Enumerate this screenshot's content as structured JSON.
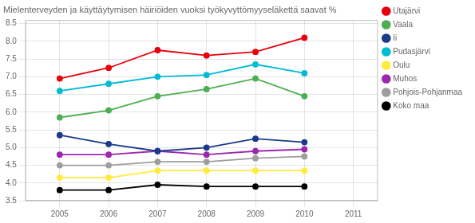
{
  "chart_data": {
    "type": "line",
    "title": "Mielenterveyden ja käyttäytymisen häiriöiden vuoksi työkyvyttömyyseläkettä saavat %",
    "x": [
      2005,
      2006,
      2007,
      2008,
      2009,
      2010
    ],
    "series": [
      {
        "name": "Utajärvi",
        "color": "#e8000d",
        "values": [
          6.95,
          7.25,
          7.75,
          7.6,
          7.7,
          8.1
        ]
      },
      {
        "name": "Vaala",
        "color": "#4caf50",
        "values": [
          5.85,
          6.05,
          6.45,
          6.65,
          6.95,
          6.45
        ]
      },
      {
        "name": "Ii",
        "color": "#1a3a8a",
        "values": [
          5.35,
          5.1,
          4.9,
          5.0,
          5.25,
          5.15
        ]
      },
      {
        "name": "Pudasjärvi",
        "color": "#00bcd4",
        "values": [
          6.6,
          6.8,
          7.0,
          7.05,
          7.35,
          7.1
        ]
      },
      {
        "name": "Oulu",
        "color": "#ffeb3b",
        "values": [
          4.15,
          4.15,
          4.35,
          4.35,
          4.35,
          4.35
        ]
      },
      {
        "name": "Muhos",
        "color": "#9c27b0",
        "values": [
          4.8,
          4.8,
          4.9,
          4.8,
          4.9,
          4.95
        ]
      },
      {
        "name": "Pohjois-Pohjanmaa",
        "color": "#9e9e9e",
        "values": [
          4.5,
          4.5,
          4.6,
          4.6,
          4.7,
          4.75
        ]
      },
      {
        "name": "Koko maa",
        "color": "#000000",
        "values": [
          3.8,
          3.8,
          3.95,
          3.9,
          3.9,
          3.9
        ]
      }
    ],
    "xlim": [
      2004.3,
      2011.5
    ],
    "xticks": [
      2005,
      2006,
      2007,
      2008,
      2009,
      2010,
      2011
    ],
    "ylim": [
      3.5,
      8.6
    ],
    "yticks": [
      3.5,
      {
        "value": 4.0,
        "label": "4.0"
      },
      4.5,
      {
        "value": 5.0,
        "label": "5.0"
      },
      5.5,
      {
        "value": 6.0,
        "label": "6.0"
      },
      6.5,
      {
        "value": 7.0,
        "label": "7.0"
      },
      7.5,
      {
        "value": 8.0,
        "label": "8.0"
      },
      8.5
    ],
    "grid": true,
    "legend": "right",
    "marker": "circle"
  }
}
